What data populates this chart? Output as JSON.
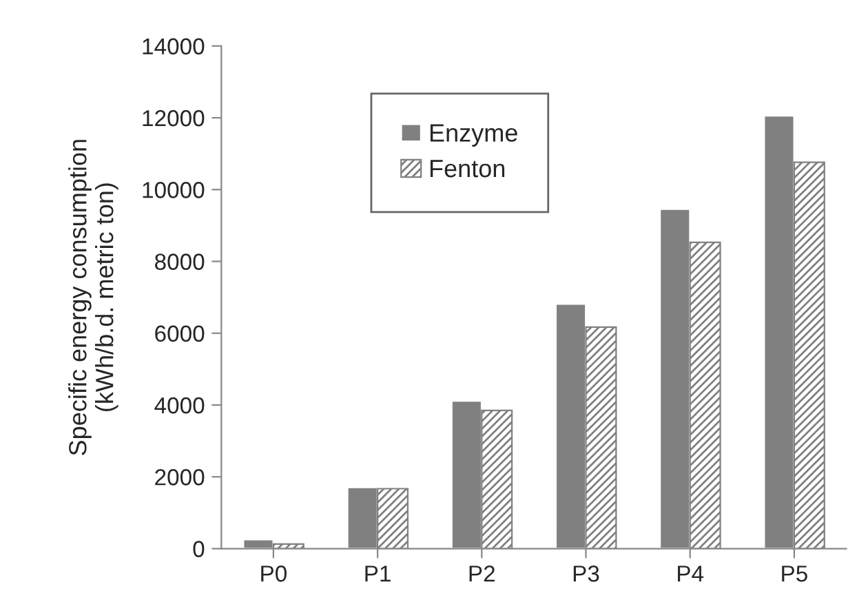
{
  "chart_data": {
    "type": "bar",
    "ylabel": "Specific energy consumption\n(kWh/b.d. metric ton)",
    "categories": [
      "P0",
      "P1",
      "P2",
      "P3",
      "P4",
      "P5"
    ],
    "series": [
      {
        "name": "Enzyme",
        "color": "#808080",
        "values": [
          260,
          1710,
          4120,
          6820,
          9460,
          12060
        ]
      },
      {
        "name": "Fenton",
        "color": "#808080",
        "values": [
          130,
          1670,
          3850,
          6170,
          8530,
          10760
        ]
      }
    ],
    "ylim": [
      0,
      14000
    ],
    "yticks": [
      0,
      2000,
      4000,
      6000,
      8000,
      10000,
      12000,
      14000
    ],
    "grid": false,
    "legend": "top left"
  }
}
